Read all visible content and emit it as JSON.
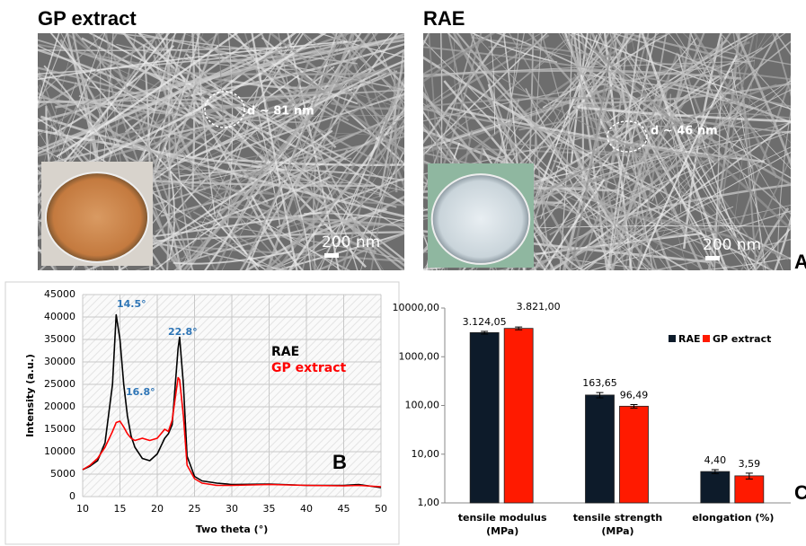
{
  "panels": [
    {
      "title": "GP extract",
      "annotation": "d ~ 81 nm",
      "scale": "200 nm"
    },
    {
      "title": "RAE",
      "annotation": "d ~ 46 nm",
      "scale": "200 nm"
    }
  ],
  "panel_label": "A",
  "chart_data": [
    {
      "type": "line",
      "panel_label": "B",
      "x_label": "Two theta (°)",
      "y_label": "Intensity (a.u.)",
      "annotations": [
        "14.5°",
        "16.8°",
        "22.8°"
      ],
      "x": [
        10,
        11,
        12,
        13,
        14,
        14.5,
        15,
        15.5,
        16,
        16.5,
        17,
        18,
        19,
        20,
        21,
        21.5,
        22,
        22.8,
        23,
        23.5,
        24,
        25,
        26,
        28,
        30,
        35,
        40,
        45,
        47,
        50
      ],
      "series": [
        {
          "name": "RAE",
          "color": "#000000",
          "values": [
            6000,
            6800,
            8000,
            12000,
            25000,
            40500,
            35000,
            25000,
            18000,
            13500,
            11000,
            8500,
            8000,
            9500,
            13000,
            14000,
            16000,
            33000,
            35500,
            25000,
            9000,
            4500,
            3500,
            3000,
            2700,
            2800,
            2500,
            2500,
            2700,
            2000
          ]
        },
        {
          "name": "GP extract",
          "color": "#ff0000",
          "values": [
            6000,
            7000,
            8500,
            11000,
            14500,
            16500,
            16800,
            15500,
            14000,
            13000,
            12500,
            13000,
            12500,
            13000,
            15000,
            14500,
            17000,
            26500,
            26000,
            18000,
            7000,
            4000,
            3000,
            2500,
            2500,
            2700,
            2500,
            2400,
            2500,
            2200
          ]
        }
      ],
      "xlim": [
        10,
        50
      ],
      "xticks": [
        10,
        15,
        20,
        25,
        30,
        35,
        40,
        45,
        50
      ],
      "ylim": [
        0,
        45000
      ],
      "yticks": [
        0,
        5000,
        10000,
        15000,
        20000,
        25000,
        30000,
        35000,
        40000,
        45000
      ],
      "grid": true
    },
    {
      "type": "bar",
      "panel_label": "C",
      "log_scale": true,
      "categories": [
        "tensile modulus\n(MPa)",
        "tensile strength\n(MPa)",
        "elongation (%)"
      ],
      "series": [
        {
          "name": "RAE",
          "color": "#0d1b2a",
          "values": [
            3124.05,
            163.65,
            4.4
          ],
          "value_labels": [
            "3.124,05",
            "163,65",
            "4,40"
          ],
          "errors": [
            200,
            20,
            0.4
          ]
        },
        {
          "name": "GP extract",
          "color": "#ff1a00",
          "values": [
            3821.0,
            96.49,
            3.59
          ],
          "value_labels": [
            "3.821,00",
            "96,49",
            "3,59"
          ],
          "errors": [
            250,
            8,
            0.5
          ]
        }
      ],
      "ylim": [
        1,
        10000
      ],
      "yticks": [
        {
          "value": 1,
          "label": "1,00"
        },
        {
          "value": 10,
          "label": "10,00"
        },
        {
          "value": 100,
          "label": "100,00"
        },
        {
          "value": 1000,
          "label": "1000,00"
        },
        {
          "value": 10000,
          "label": "10000,00"
        }
      ],
      "legend": "top-right"
    }
  ]
}
